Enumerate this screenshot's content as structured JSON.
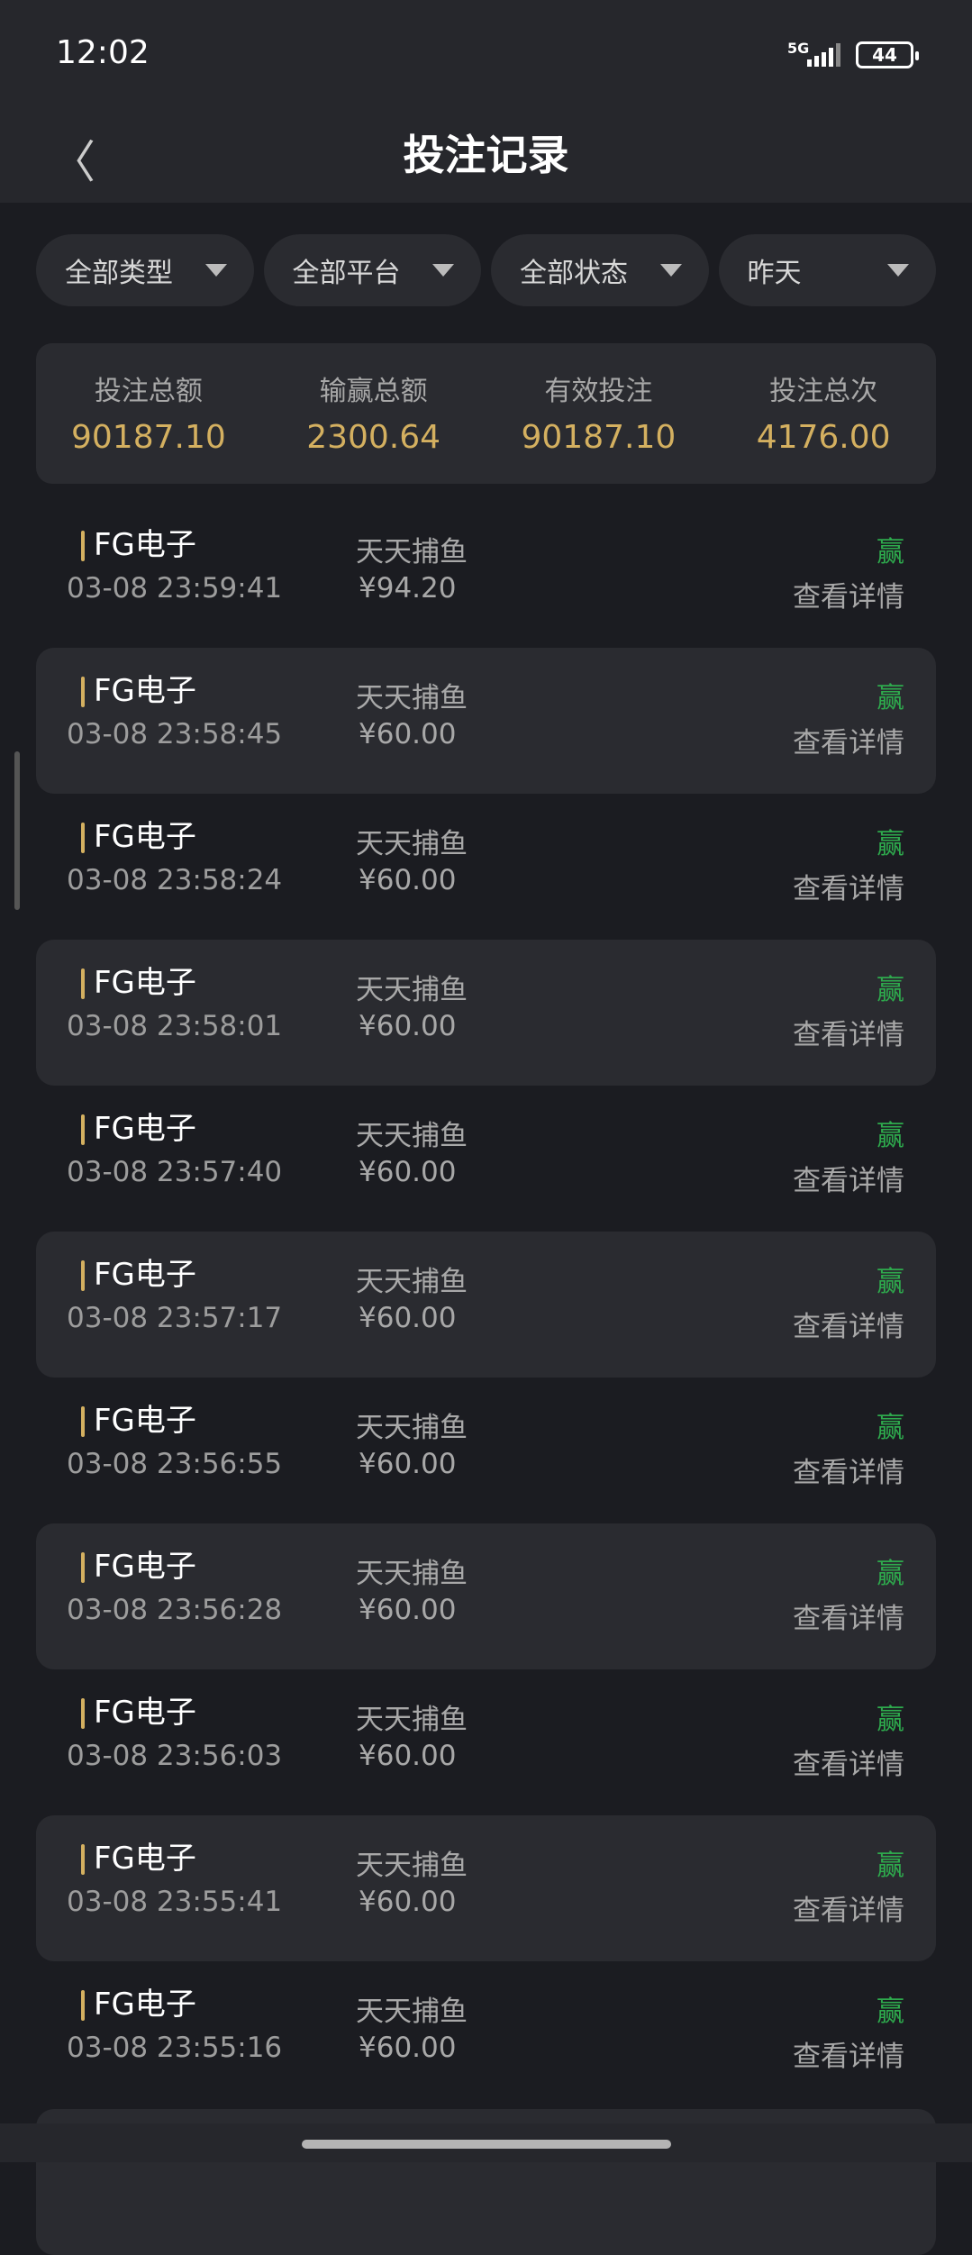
{
  "status_bar": {
    "time": "12:02",
    "network": "5G",
    "battery": "44"
  },
  "header": {
    "title": "投注记录",
    "back_icon": "chevron-left-icon"
  },
  "filters": [
    {
      "label": "全部类型"
    },
    {
      "label": "全部平台"
    },
    {
      "label": "全部状态"
    },
    {
      "label": "昨天"
    }
  ],
  "summary": [
    {
      "label": "投注总额",
      "value": "90187.10"
    },
    {
      "label": "输赢总额",
      "value": "2300.64"
    },
    {
      "label": "有效投注",
      "value": "90187.10"
    },
    {
      "label": "投注总次",
      "value": "4176.00"
    }
  ],
  "colors": {
    "accent_gold": "#d4b060",
    "win_green": "#2eaa4d",
    "background": "#1b1c21",
    "card": "#2a2b30"
  },
  "records": [
    {
      "platform": "FG电子",
      "time": "03-08 23:59:41",
      "game": "天天捕鱼",
      "amount": "¥94.20",
      "result": "赢",
      "detail": "查看详情"
    },
    {
      "platform": "FG电子",
      "time": "03-08 23:58:45",
      "game": "天天捕鱼",
      "amount": "¥60.00",
      "result": "赢",
      "detail": "查看详情"
    },
    {
      "platform": "FG电子",
      "time": "03-08 23:58:24",
      "game": "天天捕鱼",
      "amount": "¥60.00",
      "result": "赢",
      "detail": "查看详情"
    },
    {
      "platform": "FG电子",
      "time": "03-08 23:58:01",
      "game": "天天捕鱼",
      "amount": "¥60.00",
      "result": "赢",
      "detail": "查看详情"
    },
    {
      "platform": "FG电子",
      "time": "03-08 23:57:40",
      "game": "天天捕鱼",
      "amount": "¥60.00",
      "result": "赢",
      "detail": "查看详情"
    },
    {
      "platform": "FG电子",
      "time": "03-08 23:57:17",
      "game": "天天捕鱼",
      "amount": "¥60.00",
      "result": "赢",
      "detail": "查看详情"
    },
    {
      "platform": "FG电子",
      "time": "03-08 23:56:55",
      "game": "天天捕鱼",
      "amount": "¥60.00",
      "result": "赢",
      "detail": "查看详情"
    },
    {
      "platform": "FG电子",
      "time": "03-08 23:56:28",
      "game": "天天捕鱼",
      "amount": "¥60.00",
      "result": "赢",
      "detail": "查看详情"
    },
    {
      "platform": "FG电子",
      "time": "03-08 23:56:03",
      "game": "天天捕鱼",
      "amount": "¥60.00",
      "result": "赢",
      "detail": "查看详情"
    },
    {
      "platform": "FG电子",
      "time": "03-08 23:55:41",
      "game": "天天捕鱼",
      "amount": "¥60.00",
      "result": "赢",
      "detail": "查看详情"
    },
    {
      "platform": "FG电子",
      "time": "03-08 23:55:16",
      "game": "天天捕鱼",
      "amount": "¥60.00",
      "result": "赢",
      "detail": "查看详情"
    }
  ]
}
